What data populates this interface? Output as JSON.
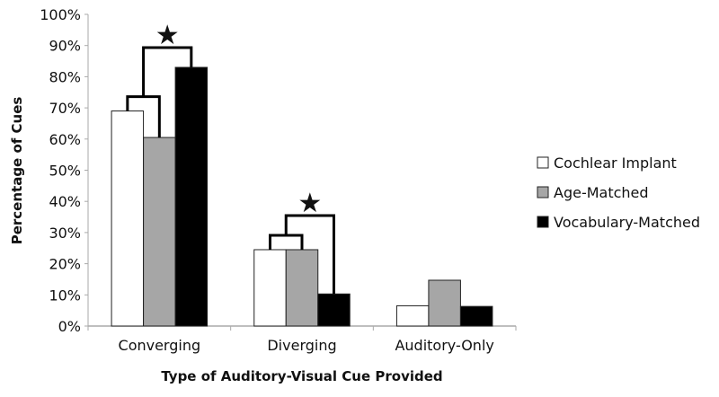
{
  "chart_data": {
    "type": "bar",
    "title": "",
    "xlabel": "Type of Auditory-Visual Cue Provided",
    "ylabel": "Percentage of Cues",
    "ylim": [
      0,
      100
    ],
    "yticks": [
      "0%",
      "10%",
      "20%",
      "30%",
      "40%",
      "50%",
      "60%",
      "70%",
      "80%",
      "90%",
      "100%"
    ],
    "categories": [
      "Converging",
      "Diverging",
      "Auditory-Only"
    ],
    "series": [
      {
        "name": "Cochlear Implant",
        "color": "#ffffff",
        "values": [
          69,
          24.5,
          6.5
        ]
      },
      {
        "name": "Age-Matched",
        "color": "#a6a6a6",
        "values": [
          60.5,
          24.5,
          14.7
        ]
      },
      {
        "name": "Vocabulary-Matched",
        "color": "#000000",
        "values": [
          83,
          10.3,
          6.3
        ]
      }
    ],
    "legend_position": "right",
    "grid": false,
    "significance_marker": "★",
    "significance": [
      {
        "category": "Converging",
        "comparison": [
          "Cochlear Implant + Age-Matched",
          "Vocabulary-Matched"
        ]
      },
      {
        "category": "Diverging",
        "comparison": [
          "Cochlear Implant + Age-Matched",
          "Vocabulary-Matched"
        ]
      }
    ]
  }
}
